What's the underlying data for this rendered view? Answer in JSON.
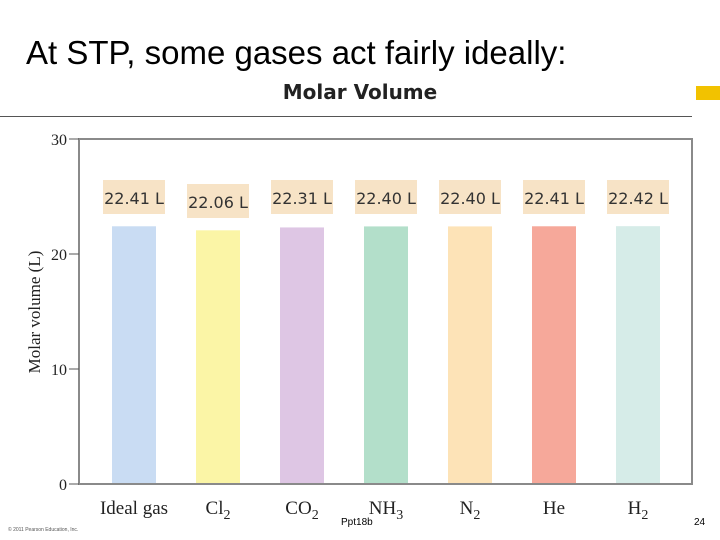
{
  "slide": {
    "title": "At STP, some gases act fairly ideally:",
    "footer": "Ppt18b",
    "page_number": "24",
    "copyright": "© 2011 Pearson Education, Inc."
  },
  "colors": {
    "accent": "#f2c200",
    "plot_border": "#8a8a8a",
    "label_box": "#f7e3c6"
  },
  "chart_data": {
    "type": "bar",
    "title": "Molar Volume",
    "ylabel": "Molar volume (L)",
    "xlabel": "",
    "ylim": [
      0,
      30
    ],
    "yticks": [
      0,
      10,
      20,
      30
    ],
    "grid": false,
    "categories": [
      {
        "base": "Ideal gas",
        "sub": ""
      },
      {
        "base": "Cl",
        "sub": "2"
      },
      {
        "base": "CO",
        "sub": "2"
      },
      {
        "base": "NH",
        "sub": "3"
      },
      {
        "base": "N",
        "sub": "2"
      },
      {
        "base": "He",
        "sub": ""
      },
      {
        "base": "H",
        "sub": "2"
      }
    ],
    "values": [
      22.41,
      22.06,
      22.31,
      22.4,
      22.4,
      22.41,
      22.42
    ],
    "data_labels": [
      "22.41 L",
      "22.06 L",
      "22.31 L",
      "22.40 L",
      "22.40 L",
      "22.41 L",
      "22.42 L"
    ],
    "bar_colors": [
      "#c9dcf3",
      "#fbf5a6",
      "#dec6e4",
      "#b3dfca",
      "#fde3b7",
      "#f6a89a",
      "#d6ece8"
    ]
  }
}
